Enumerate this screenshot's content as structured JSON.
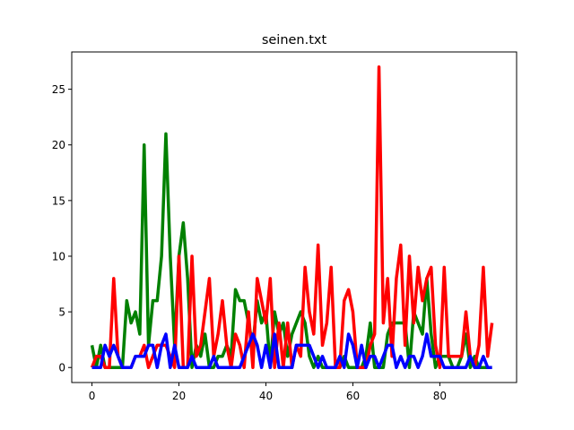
{
  "chart_data": {
    "type": "line",
    "title": "seinen.txt",
    "xlabel": "",
    "ylabel": "",
    "xlim": [
      -4.65,
      97.65
    ],
    "ylim": [
      -1.35,
      28.35
    ],
    "xticks": [
      0,
      20,
      40,
      60,
      80
    ],
    "yticks": [
      0,
      5,
      10,
      15,
      20,
      25
    ],
    "grid": false,
    "x_start": 0,
    "series": [
      {
        "color": "#008000",
        "values": [
          2,
          0,
          2,
          0,
          0,
          0,
          0,
          0,
          6,
          4,
          5,
          3,
          20,
          2,
          6,
          6,
          10,
          21,
          10,
          2,
          10,
          13,
          8,
          0,
          2,
          1,
          3,
          0,
          0,
          1,
          1,
          2,
          1,
          7,
          6,
          6,
          4,
          2,
          6,
          4,
          5,
          0,
          5,
          3,
          4,
          1,
          3,
          4,
          5,
          4,
          1,
          0,
          1,
          0,
          0,
          0,
          0,
          0,
          1,
          0,
          0,
          0,
          0,
          1,
          4,
          0,
          0,
          0,
          3,
          4,
          4,
          4,
          4,
          0,
          5,
          4,
          3,
          8,
          3,
          0,
          1,
          1,
          1,
          0,
          0,
          1,
          3,
          0,
          1,
          0,
          0,
          0,
          0
        ]
      },
      {
        "color": "#ff0000",
        "values": [
          0,
          1,
          1,
          0,
          0,
          8,
          1,
          0,
          0,
          0,
          1,
          1,
          2,
          0,
          1,
          2,
          2,
          2,
          1,
          0,
          10,
          0,
          0,
          10,
          1,
          2,
          5,
          8,
          1,
          3,
          6,
          2,
          0,
          3,
          2,
          0,
          5,
          0,
          8,
          6,
          4,
          8,
          0,
          4,
          0,
          4,
          0,
          2,
          1,
          9,
          5,
          3,
          11,
          2,
          4,
          9,
          0,
          0,
          6,
          7,
          5,
          0,
          0,
          0,
          2,
          3,
          27,
          4,
          8,
          1,
          8,
          11,
          2,
          10,
          4,
          9,
          6,
          8,
          9,
          2,
          0,
          9,
          1,
          1,
          1,
          1,
          5,
          1,
          0,
          2,
          9,
          1,
          4
        ]
      },
      {
        "color": "#0000ff",
        "values": [
          0,
          0,
          0,
          2,
          1,
          2,
          1,
          0,
          0,
          0,
          1,
          1,
          1,
          2,
          2,
          0,
          2,
          3,
          0,
          2,
          0,
          0,
          0,
          1,
          0,
          0,
          0,
          0,
          1,
          0,
          0,
          0,
          0,
          0,
          0,
          1,
          2,
          3,
          2,
          0,
          2,
          0,
          3,
          0,
          0,
          0,
          0,
          2,
          2,
          2,
          2,
          1,
          0,
          1,
          0,
          0,
          0,
          1,
          0,
          3,
          2,
          0,
          2,
          0,
          1,
          1,
          0,
          1,
          2,
          2,
          0,
          1,
          0,
          1,
          1,
          0,
          1,
          3,
          1,
          1,
          1,
          0,
          0,
          0,
          0,
          0,
          0,
          1,
          0,
          0,
          1,
          0,
          0
        ]
      }
    ]
  }
}
